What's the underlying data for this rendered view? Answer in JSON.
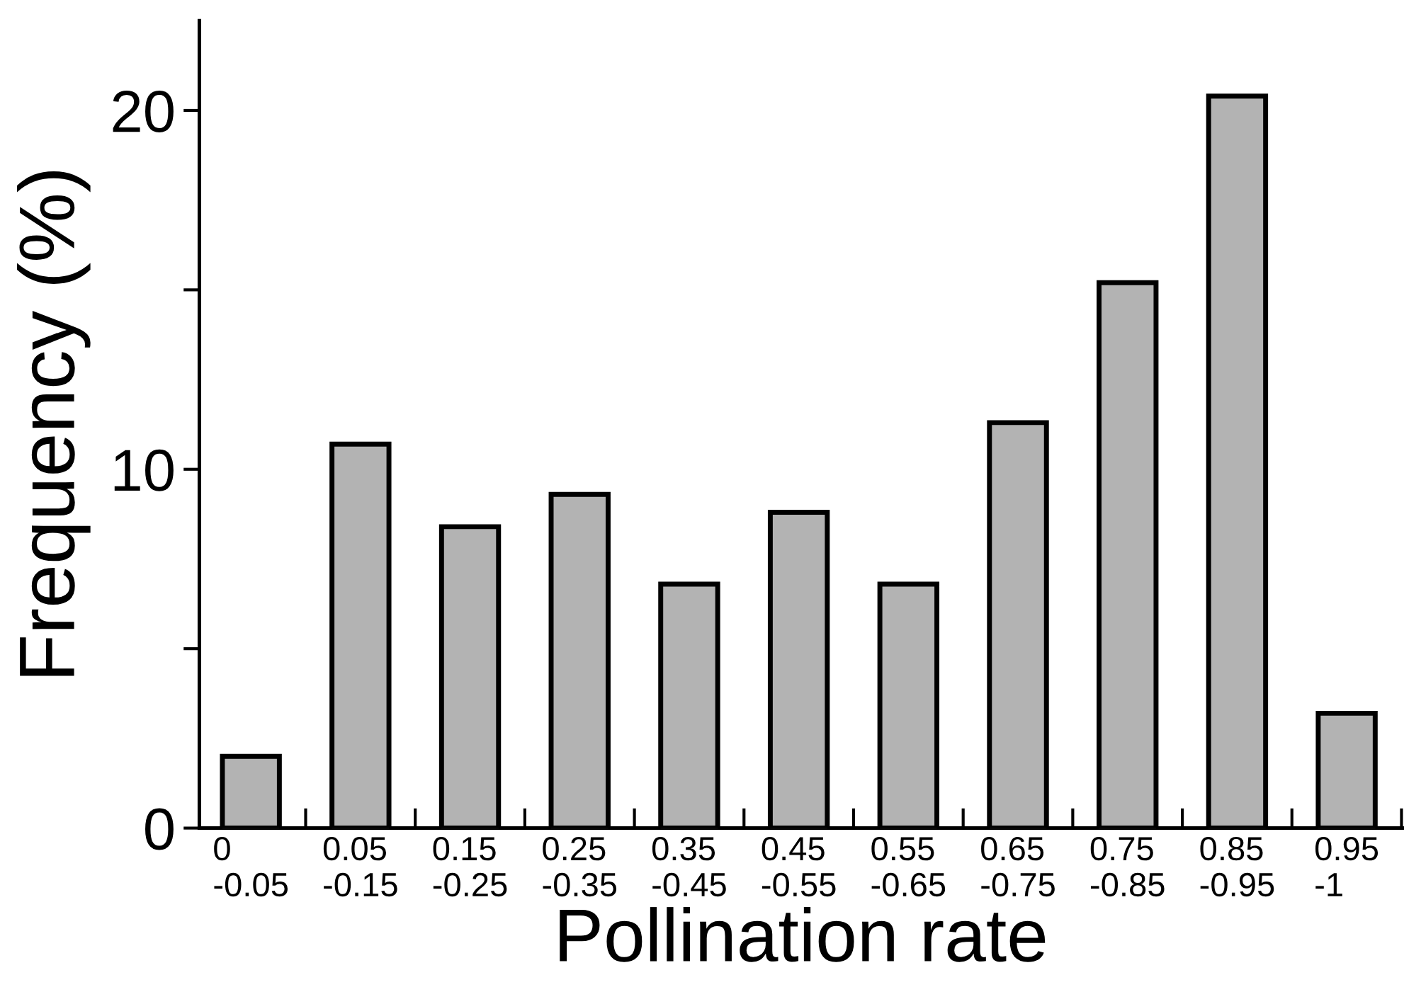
{
  "chart_data": {
    "type": "bar",
    "categories": [
      "0\n-0.05",
      "0.05\n-0.15",
      "0.15\n-0.25",
      "0.25\n-0.35",
      "0.35\n-0.45",
      "0.45\n-0.55",
      "0.55\n-0.65",
      "0.65\n-0.75",
      "0.75\n-0.85",
      "0.85\n-0.95",
      "0.95\n-1"
    ],
    "values": [
      2.0,
      10.7,
      8.4,
      9.3,
      6.8,
      8.8,
      6.8,
      11.3,
      15.2,
      20.4,
      3.2
    ],
    "color": "#b3b3b3",
    "xlabel": "Pollination rate",
    "ylabel": "Frequency (%)",
    "ylim": [
      0,
      22.5
    ],
    "yticks": [
      0,
      {
        "value": 5,
        "label": null
      },
      10,
      {
        "value": 15,
        "label": null
      },
      20
    ],
    "grid": false,
    "legend": false
  }
}
